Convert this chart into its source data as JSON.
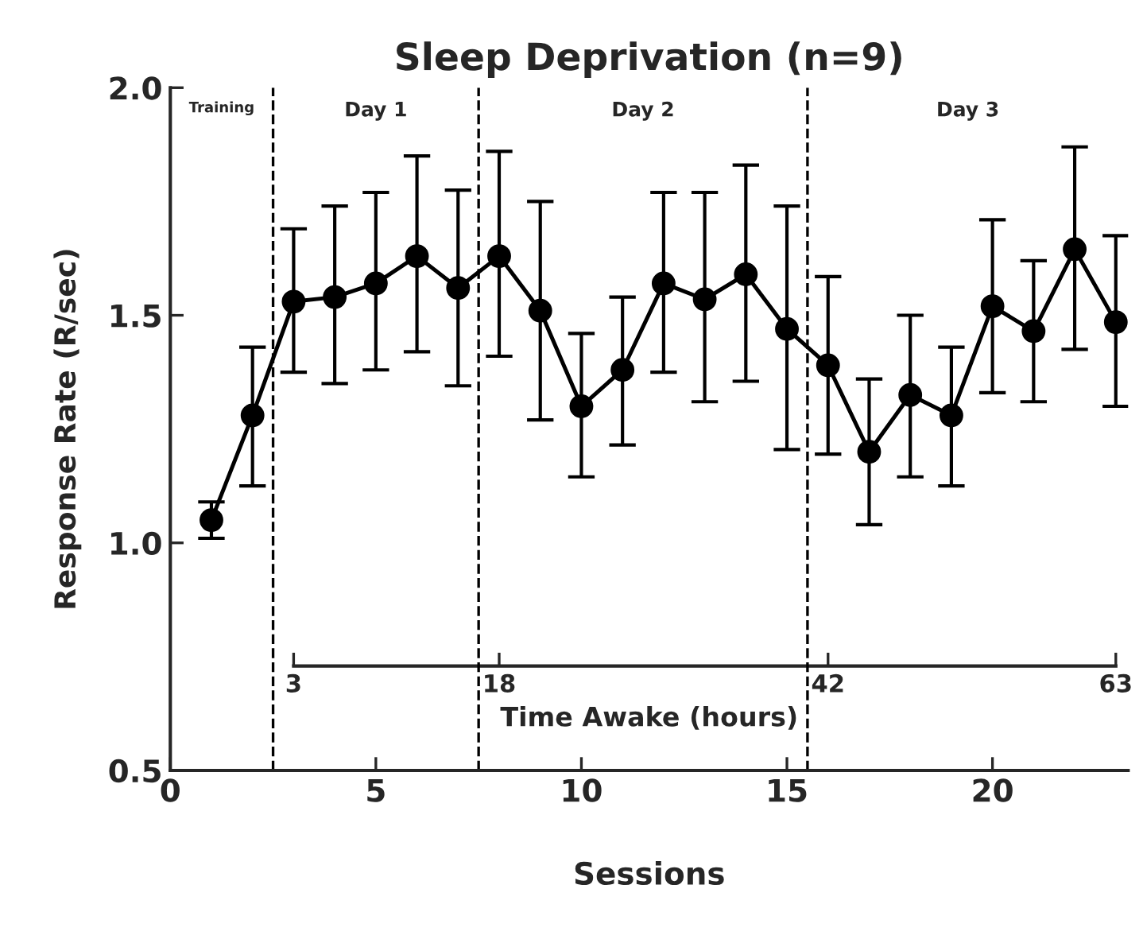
{
  "chart_data": {
    "type": "line",
    "title": "Sleep Deprivation (n=9)",
    "xlabel": "Sessions",
    "ylabel": "Response Rate (R/sec)",
    "x2label": "Time Awake (hours)",
    "x": [
      1,
      2,
      3,
      4,
      5,
      6,
      7,
      8,
      9,
      10,
      11,
      12,
      13,
      14,
      15,
      16,
      17,
      18,
      19,
      20,
      21,
      22,
      23
    ],
    "series": [
      {
        "color": "#000000",
        "values": [
          1.05,
          1.28,
          1.53,
          1.54,
          1.57,
          1.63,
          1.56,
          1.63,
          1.51,
          1.3,
          1.38,
          1.57,
          1.535,
          1.59,
          1.47,
          1.39,
          1.2,
          1.325,
          1.28,
          1.52,
          1.465,
          1.645,
          1.485
        ],
        "errors": [
          [
            1.01,
            1.09
          ],
          [
            1.125,
            1.43
          ],
          [
            1.375,
            1.69
          ],
          [
            1.35,
            1.74
          ],
          [
            1.38,
            1.77
          ],
          [
            1.42,
            1.85
          ],
          [
            1.345,
            1.775
          ],
          [
            1.41,
            1.86
          ],
          [
            1.27,
            1.75
          ],
          [
            1.145,
            1.46
          ],
          [
            1.215,
            1.54
          ],
          [
            1.375,
            1.77
          ],
          [
            1.31,
            1.77
          ],
          [
            1.355,
            1.83
          ],
          [
            1.205,
            1.74
          ],
          [
            1.195,
            1.585
          ],
          [
            1.04,
            1.36
          ],
          [
            1.145,
            1.5
          ],
          [
            1.125,
            1.43
          ],
          [
            1.33,
            1.71
          ],
          [
            1.31,
            1.62
          ],
          [
            1.425,
            1.87
          ],
          [
            1.3,
            1.675
          ]
        ]
      }
    ],
    "xlim": [
      0,
      23.3
    ],
    "xticks": [
      0,
      5,
      10,
      15,
      20
    ],
    "ylim": [
      0.5,
      2.0
    ],
    "yticks": [
      0.5,
      {
        "value": 1.0,
        "label": "1.0"
      },
      1.5,
      {
        "value": 2.0,
        "label": "2.0"
      }
    ],
    "x2lim": [
      -6,
      63.9
    ],
    "x2ticks": [
      3,
      18,
      42,
      63
    ],
    "ref_lines": [
      {
        "axis": "x",
        "value": 2.5,
        "line_style": "dashed"
      },
      {
        "axis": "x",
        "value": 7.5,
        "line_style": "dashed"
      },
      {
        "axis": "x",
        "value": 15.5,
        "line_style": "dashed"
      }
    ],
    "annotations": [
      "Training",
      "Day 1",
      "Day 2",
      "Day 3"
    ],
    "marker": "circle",
    "line_style": "solid",
    "grid": false,
    "legend": false
  }
}
